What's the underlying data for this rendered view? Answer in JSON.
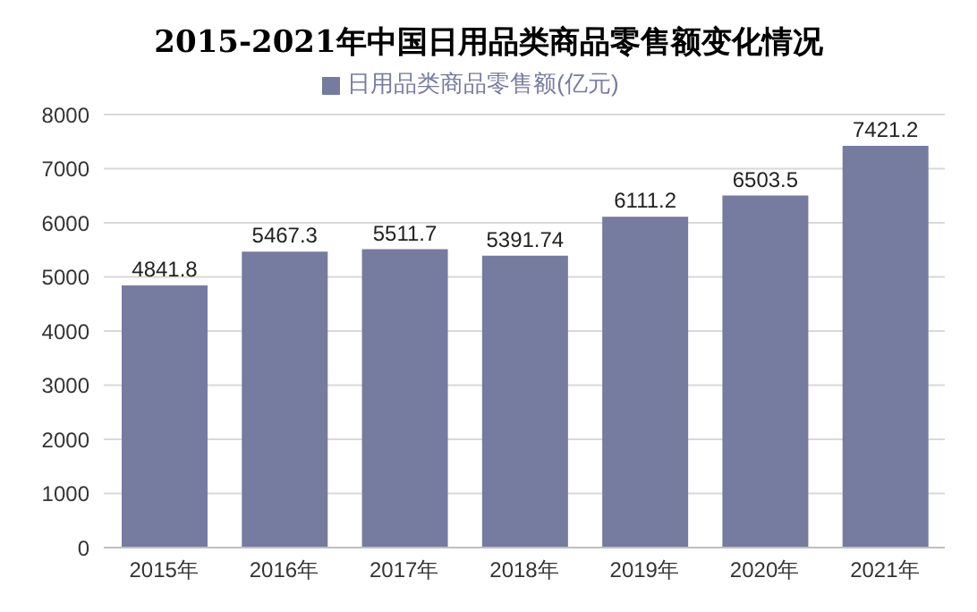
{
  "chart_data": {
    "type": "bar",
    "title": "2015-2021年中国日用品类商品零售额变化情况",
    "categories": [
      "2015年",
      "2016年",
      "2017年",
      "2018年",
      "2019年",
      "2020年",
      "2021年"
    ],
    "series": [
      {
        "name": "日用品类商品零售额(亿元)",
        "color": "#767ba0",
        "values": [
          4841.8,
          5467.3,
          5511.7,
          5391.74,
          6111.2,
          6503.5,
          7421.2
        ]
      }
    ],
    "ylim": [
      0,
      8000
    ],
    "yticks": [
      0,
      1000,
      2000,
      3000,
      4000,
      5000,
      6000,
      7000,
      8000
    ],
    "grid": "y",
    "legend": "top",
    "data_labels": true
  }
}
